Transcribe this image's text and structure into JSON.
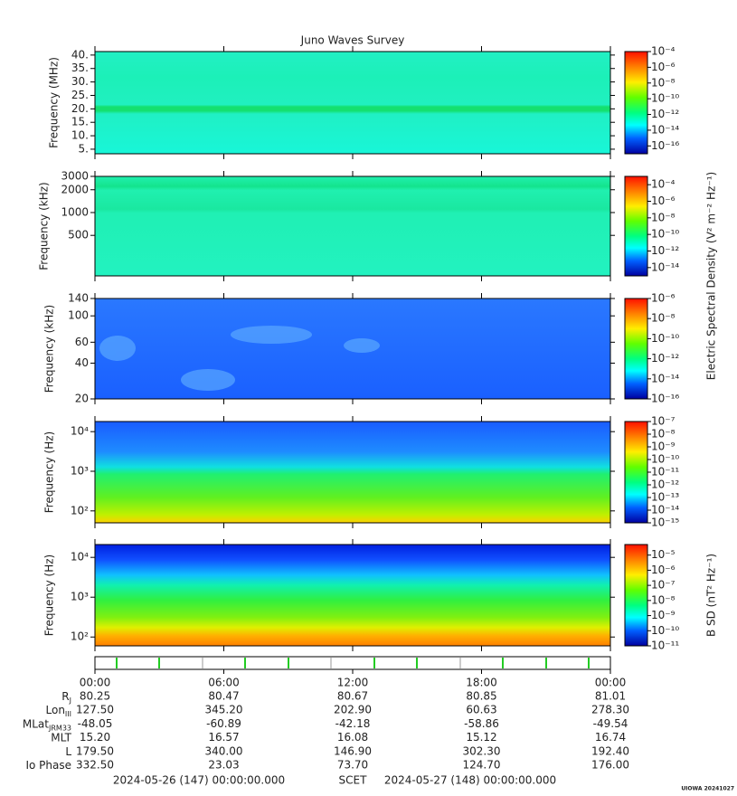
{
  "title": "Juno Waves Survey",
  "chart_data": [
    {
      "type": "spectrogram",
      "ylabel": "Frequency (MHz)",
      "log": false,
      "ylim": [
        3.3,
        41.3
      ],
      "yticks": [
        {
          "value": 5,
          "label": "5."
        },
        {
          "value": 10,
          "label": "10."
        },
        {
          "value": 15,
          "label": "15."
        },
        {
          "value": 20,
          "label": "20."
        },
        {
          "value": 25,
          "label": "25."
        },
        {
          "value": 30,
          "label": "30."
        },
        {
          "value": 35,
          "label": "35."
        },
        {
          "value": 40,
          "label": "40."
        }
      ],
      "colorbar": {
        "log": true,
        "lim": [
          1e-17,
          0.0001
        ],
        "ticks": [
          {
            "value": 1e-16,
            "label": "10⁻¹⁶"
          },
          {
            "value": 1e-14,
            "label": "10⁻¹⁴"
          },
          {
            "value": 1e-12,
            "label": "10⁻¹²"
          },
          {
            "value": 1e-10,
            "label": "10⁻¹⁰"
          },
          {
            "value": 1e-08,
            "label": "10⁻⁸"
          },
          {
            "value": 1e-06,
            "label": "10⁻⁶"
          },
          {
            "value": 0.0001,
            "label": "10⁻⁴"
          }
        ]
      }
    },
    {
      "type": "spectrogram",
      "ylabel": "Frequency (kHz)",
      "log": true,
      "ylim": [
        146,
        3000
      ],
      "yticks": [
        500,
        1000,
        2000,
        3000
      ],
      "colorbar": {
        "log": true,
        "lim": [
          1e-15,
          0.001
        ],
        "ticks": [
          {
            "value": 1e-14,
            "label": "10⁻¹⁴"
          },
          {
            "value": 1e-12,
            "label": "10⁻¹²"
          },
          {
            "value": 1e-10,
            "label": "10⁻¹⁰"
          },
          {
            "value": 1e-08,
            "label": "10⁻⁸"
          },
          {
            "value": 1e-06,
            "label": "10⁻⁶"
          },
          {
            "value": 0.0001,
            "label": "10⁻⁴"
          }
        ]
      }
    },
    {
      "type": "spectrogram",
      "ylabel": "Frequency (kHz)",
      "log": true,
      "ylim": [
        20,
        140
      ],
      "yticks": [
        20,
        40,
        60,
        100,
        140
      ],
      "colorbar": {
        "log": true,
        "lim": [
          1e-16,
          1e-06
        ],
        "ticks": [
          {
            "value": 1e-16,
            "label": "10⁻¹⁶"
          },
          {
            "value": 1e-14,
            "label": "10⁻¹⁴"
          },
          {
            "value": 1e-12,
            "label": "10⁻¹²"
          },
          {
            "value": 1e-10,
            "label": "10⁻¹⁰"
          },
          {
            "value": 1e-08,
            "label": "10⁻⁸"
          },
          {
            "value": 1e-06,
            "label": "10⁻⁶"
          }
        ]
      }
    },
    {
      "type": "spectrogram",
      "ylabel": "Frequency (Hz)",
      "log": true,
      "ylim": [
        50,
        18000
      ],
      "yticks": [
        {
          "value": 100,
          "label": "10²"
        },
        {
          "value": 1000,
          "label": "10³"
        },
        {
          "value": 10000,
          "label": "10⁴"
        }
      ],
      "colorbar": {
        "log": true,
        "lim": [
          1e-15,
          1e-07
        ],
        "ticks": [
          {
            "value": 1e-15,
            "label": "10⁻¹⁵"
          },
          {
            "value": 1e-14,
            "label": "10⁻¹⁴"
          },
          {
            "value": 1e-13,
            "label": "10⁻¹³"
          },
          {
            "value": 1e-12,
            "label": "10⁻¹²"
          },
          {
            "value": 1e-11,
            "label": "10⁻¹¹"
          },
          {
            "value": 1e-10,
            "label": "10⁻¹⁰"
          },
          {
            "value": 1e-09,
            "label": "10⁻⁹"
          },
          {
            "value": 1e-08,
            "label": "10⁻⁸"
          },
          {
            "value": 1e-07,
            "label": "10⁻⁷"
          }
        ]
      }
    },
    {
      "type": "spectrogram",
      "ylabel": "Frequency (Hz)",
      "log": true,
      "ylim": [
        60,
        21000
      ],
      "yticks": [
        {
          "value": 100,
          "label": "10²"
        },
        {
          "value": 1000,
          "label": "10³"
        },
        {
          "value": 10000,
          "label": "10⁴"
        }
      ],
      "colorbar": {
        "log": true,
        "lim": [
          1e-11,
          5e-05
        ],
        "ticks": [
          {
            "value": 1e-11,
            "label": "10⁻¹¹"
          },
          {
            "value": 1e-10,
            "label": "10⁻¹⁰"
          },
          {
            "value": 1e-09,
            "label": "10⁻⁹"
          },
          {
            "value": 1e-08,
            "label": "10⁻⁸"
          },
          {
            "value": 1e-07,
            "label": "10⁻⁷"
          },
          {
            "value": 1e-06,
            "label": "10⁻⁶"
          },
          {
            "value": 1e-05,
            "label": "10⁻⁵"
          }
        ]
      }
    }
  ],
  "colorbar_labels": [
    "Electric Spectral Density (V² m⁻² Hz⁻¹)",
    "B SD (nT² Hz⁻¹)"
  ],
  "time_axis": {
    "xlim": [
      0,
      24
    ],
    "xticks": [
      {
        "value": 0,
        "label": "00:00"
      },
      {
        "value": 6,
        "label": "06:00"
      },
      {
        "value": 12,
        "label": "12:00"
      },
      {
        "value": 18,
        "label": "18:00"
      },
      {
        "value": 24,
        "label": "00:00"
      }
    ]
  },
  "ephemeris": [
    {
      "label": "R",
      "sub": "J",
      "values": [
        "80.25",
        "80.47",
        "80.67",
        "80.85",
        "81.01"
      ]
    },
    {
      "label": "Lon",
      "sub": "III",
      "values": [
        "127.50",
        "345.20",
        "202.90",
        "60.63",
        "278.30"
      ]
    },
    {
      "label": "MLat",
      "sub": "JRM33",
      "values": [
        "-48.05",
        "-60.89",
        "-42.18",
        "-58.86",
        "-49.54"
      ]
    },
    {
      "label": "MLT",
      "values": [
        "15.20",
        "16.57",
        "16.08",
        "15.12",
        "16.74"
      ]
    },
    {
      "label": "L",
      "values": [
        "179.50",
        "340.00",
        "146.90",
        "302.30",
        "192.40"
      ]
    },
    {
      "label": "Io Phase",
      "values": [
        "332.50",
        "23.03",
        "73.70",
        "124.70",
        "176.00"
      ]
    }
  ],
  "scet": {
    "start": "2024-05-26 (147) 00:00:00.000",
    "label": "SCET",
    "end": "2024-05-27 (148) 00:00:00.000"
  },
  "footer": "UIOWA 20241027"
}
